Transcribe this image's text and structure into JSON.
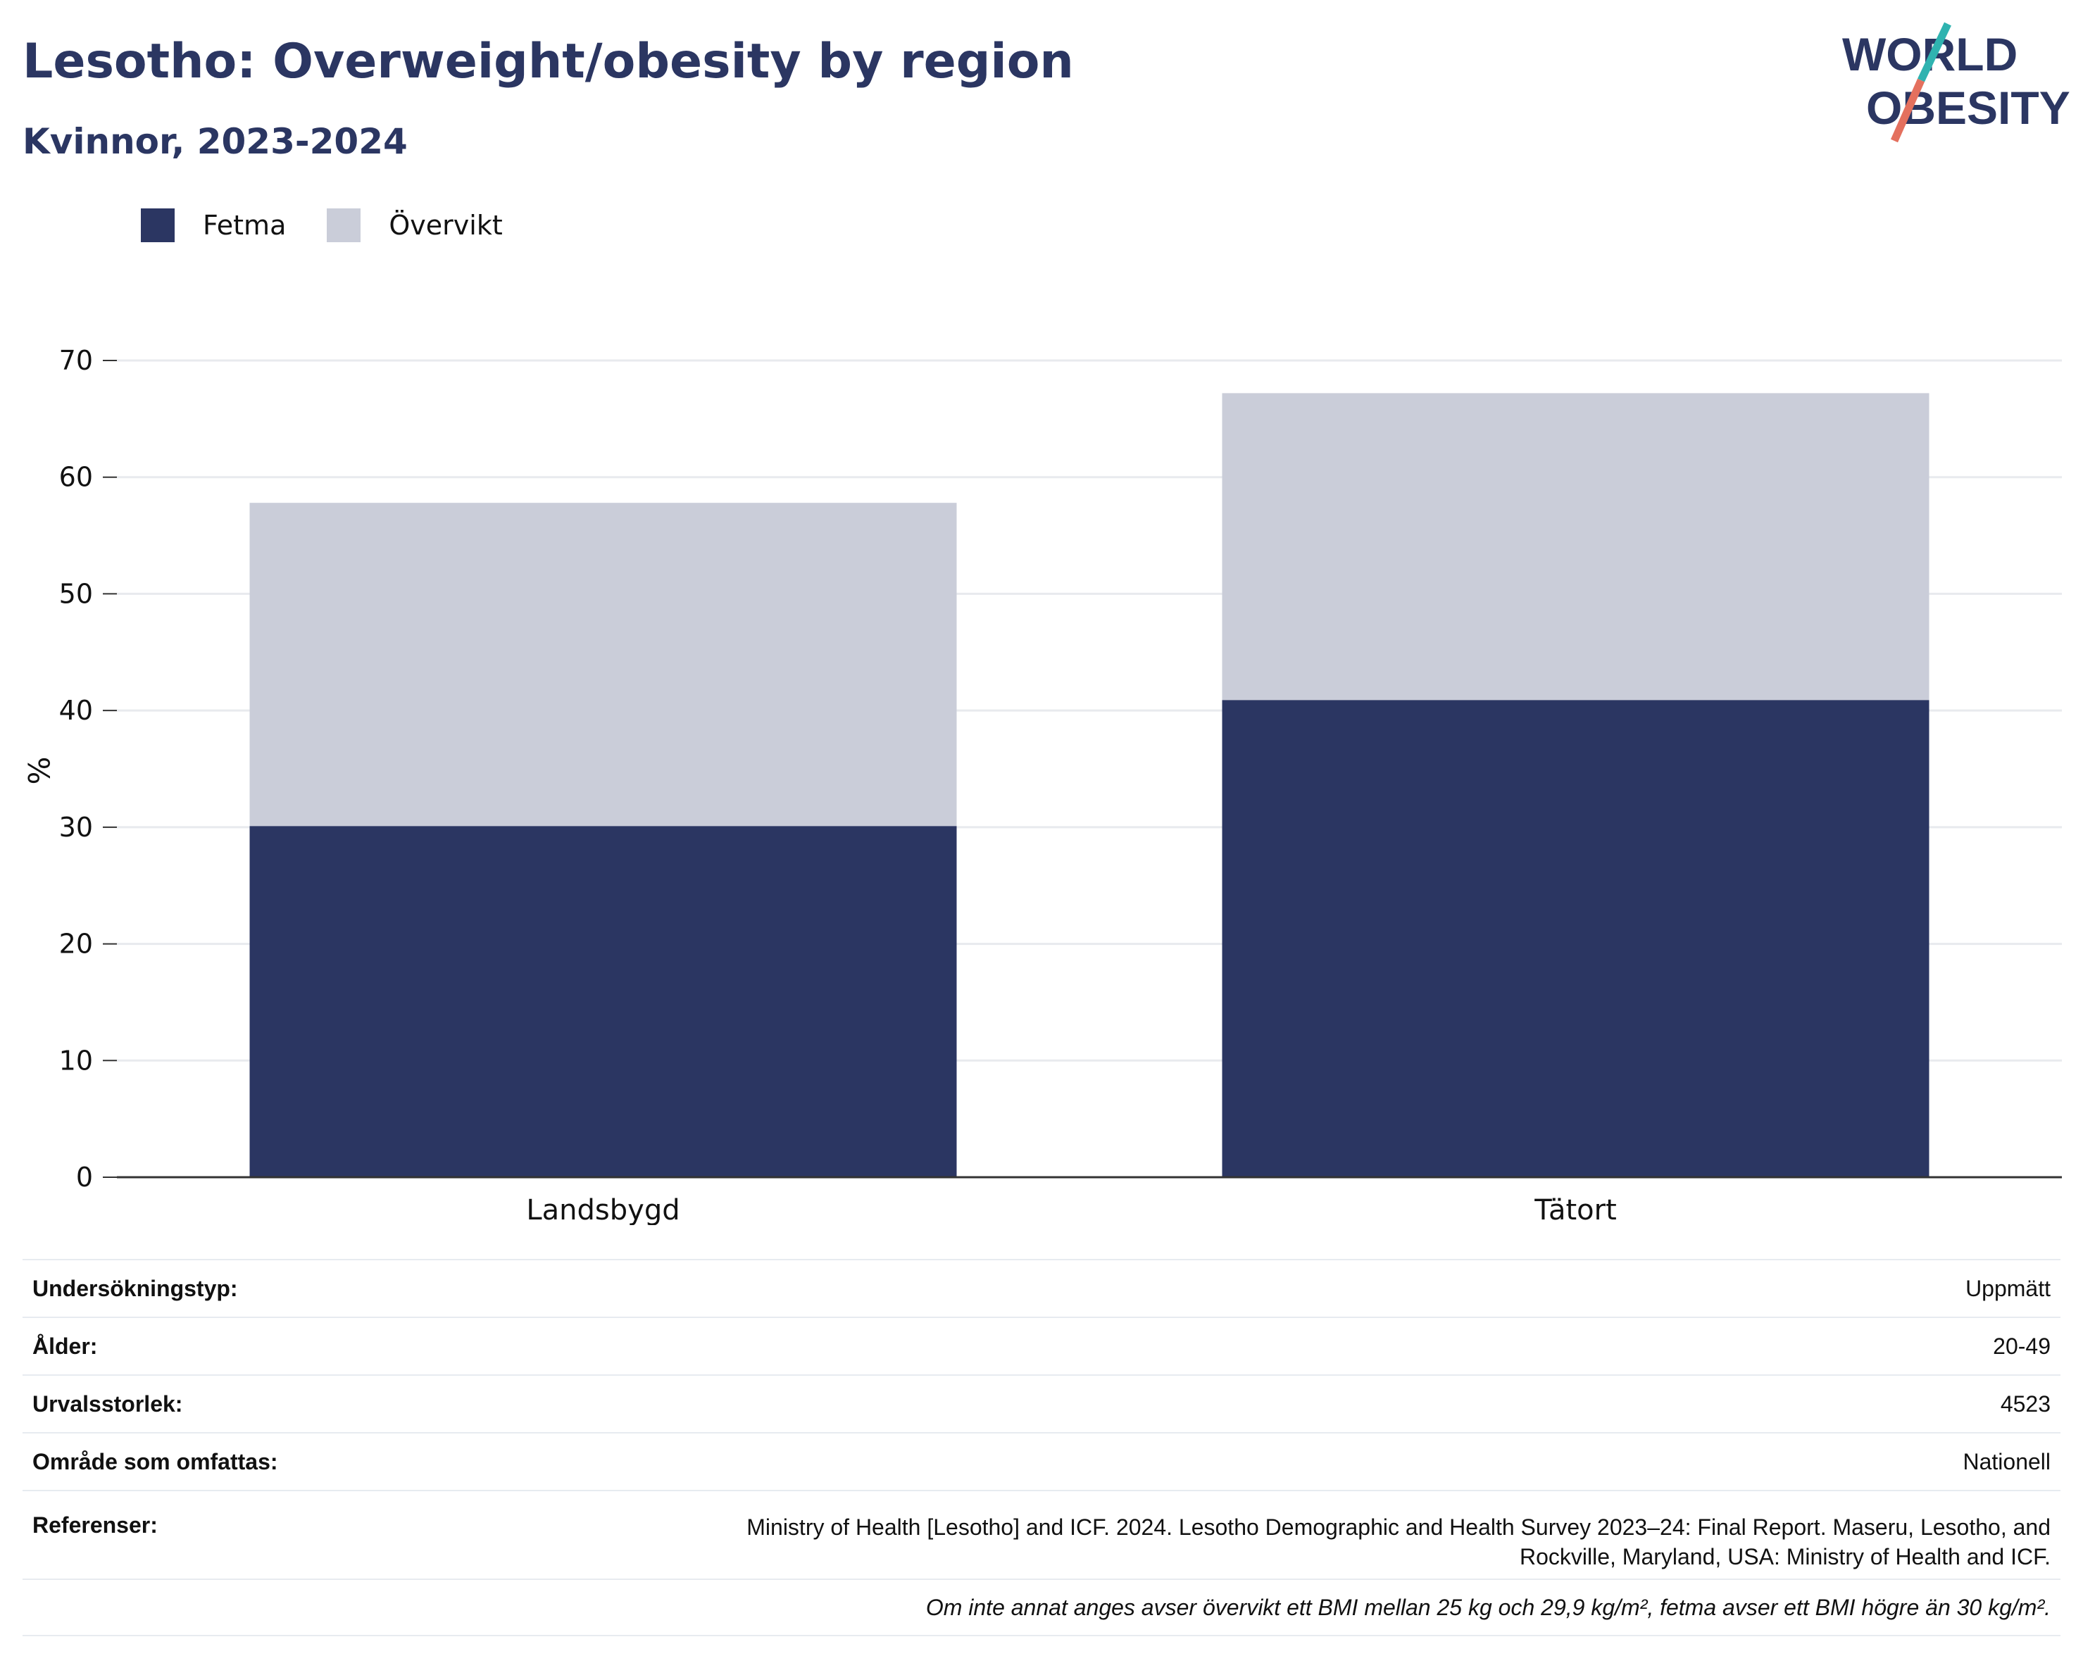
{
  "title": "Lesotho: Overweight/obesity by region",
  "subtitle": "Kvinnor, 2023-2024",
  "logo": {
    "line1": "WORLD",
    "line2": "OBESITY"
  },
  "colors": {
    "obesity": "#2b3662",
    "overweight": "#cacdd9",
    "text": "#2b3662",
    "accent1": "#2fb3b0",
    "accent2": "#e4705e"
  },
  "legend": [
    {
      "label": "Fetma",
      "color": "#2b3662"
    },
    {
      "label": "Övervikt",
      "color": "#cacdd9"
    }
  ],
  "chart_data": {
    "type": "bar",
    "stacked": true,
    "categories": [
      "Landsbygd",
      "Tätort"
    ],
    "series": [
      {
        "name": "Fetma",
        "values": [
          30.1,
          40.9
        ]
      },
      {
        "name": "Övervikt",
        "values": [
          27.7,
          26.3
        ]
      }
    ],
    "ylabel": "%",
    "ylim": [
      0,
      70
    ],
    "yticks": [
      0,
      10,
      20,
      30,
      40,
      50,
      60,
      70
    ],
    "grid": true
  },
  "info": {
    "rows": [
      {
        "label": "Undersökningstyp:",
        "value": "Uppmätt"
      },
      {
        "label": "Ålder:",
        "value": "20-49"
      },
      {
        "label": "Urvalsstorlek:",
        "value": "4523"
      },
      {
        "label": "Område som omfattas:",
        "value": "Nationell"
      }
    ],
    "references_label": "Referenser:",
    "references_line1": "Ministry of Health [Lesotho] and ICF. 2024. Lesotho Demographic and Health Survey 2023–24: Final Report. Maseru, Lesotho, and",
    "references_line2": "Rockville, Maryland, USA: Ministry of Health and ICF.",
    "footnote": "Om inte annat anges avser övervikt ett BMI mellan 25 kg och 29,9 kg/m², fetma avser ett BMI högre än 30 kg/m²."
  }
}
